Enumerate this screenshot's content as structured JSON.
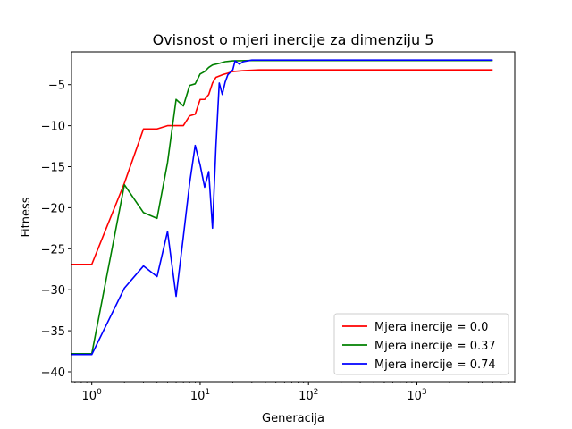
{
  "chart_data": {
    "type": "line",
    "title": "Ovisnost o mjeri inercije za dimenziju 5",
    "xlabel": "Generacija",
    "ylabel": "Fitness",
    "xscale": "log",
    "xlim": [
      0.65,
      8000
    ],
    "ylim": [
      -41.2,
      -1
    ],
    "x_ticks": [
      {
        "value": 1,
        "base": "10",
        "exp": "0"
      },
      {
        "value": 10,
        "base": "10",
        "exp": "1"
      },
      {
        "value": 100,
        "base": "10",
        "exp": "2"
      },
      {
        "value": 1000,
        "base": "10",
        "exp": "3"
      }
    ],
    "y_ticks": [
      {
        "value": -5,
        "label": "−5"
      },
      {
        "value": -10,
        "label": "−10"
      },
      {
        "value": -15,
        "label": "−15"
      },
      {
        "value": -20,
        "label": "−20"
      },
      {
        "value": -25,
        "label": "−25"
      },
      {
        "value": -30,
        "label": "−30"
      },
      {
        "value": -35,
        "label": "−35"
      },
      {
        "value": -40,
        "label": "−40"
      }
    ],
    "legend": {
      "position": "lower right"
    },
    "series": [
      {
        "name": "Mjera inercije = 0.0",
        "color": "#ff0000",
        "points": [
          [
            0.6,
            -26.9
          ],
          [
            1,
            -26.9
          ],
          [
            2,
            -17
          ],
          [
            3,
            -10.4
          ],
          [
            4,
            -10.4
          ],
          [
            5,
            -10
          ],
          [
            6,
            -10
          ],
          [
            7,
            -10
          ],
          [
            8,
            -8.8
          ],
          [
            9,
            -8.6
          ],
          [
            10,
            -6.8
          ],
          [
            11,
            -6.8
          ],
          [
            12,
            -6.2
          ],
          [
            13,
            -4.8
          ],
          [
            14,
            -4.1
          ],
          [
            16,
            -3.8
          ],
          [
            18,
            -3.6
          ],
          [
            20,
            -3.4
          ],
          [
            25,
            -3.3
          ],
          [
            35,
            -3.2
          ],
          [
            100,
            -3.2
          ],
          [
            1000,
            -3.2
          ],
          [
            5000,
            -3.2
          ]
        ]
      },
      {
        "name": "Mjera inercije = 0.37",
        "color": "#008000",
        "points": [
          [
            0.6,
            -37.8
          ],
          [
            1,
            -37.8
          ],
          [
            2,
            -17.2
          ],
          [
            3,
            -20.6
          ],
          [
            4,
            -21.3
          ],
          [
            5,
            -14.5
          ],
          [
            6,
            -6.8
          ],
          [
            7,
            -7.6
          ],
          [
            8,
            -5.1
          ],
          [
            9,
            -4.9
          ],
          [
            10,
            -3.7
          ],
          [
            11,
            -3.4
          ],
          [
            12,
            -2.9
          ],
          [
            13,
            -2.6
          ],
          [
            15,
            -2.4
          ],
          [
            17,
            -2.2
          ],
          [
            20,
            -2.1
          ],
          [
            30,
            -2.05
          ],
          [
            100,
            -2.05
          ],
          [
            1000,
            -2.05
          ],
          [
            5000,
            -2.05
          ]
        ]
      },
      {
        "name": "Mjera inercije = 0.74",
        "color": "#0000ff",
        "points": [
          [
            0.6,
            -37.9
          ],
          [
            1,
            -37.9
          ],
          [
            2,
            -29.8
          ],
          [
            3,
            -27.1
          ],
          [
            4,
            -28.4
          ],
          [
            5,
            -22.9
          ],
          [
            6,
            -30.8
          ],
          [
            7,
            -23.5
          ],
          [
            8,
            -17
          ],
          [
            9,
            -12.4
          ],
          [
            10,
            -14.8
          ],
          [
            11,
            -17.5
          ],
          [
            12,
            -15.6
          ],
          [
            13,
            -22.5
          ],
          [
            14,
            -12.4
          ],
          [
            15,
            -4.8
          ],
          [
            16,
            -6.2
          ],
          [
            17,
            -4.7
          ],
          [
            18,
            -3.8
          ],
          [
            20,
            -3.2
          ],
          [
            21,
            -2.1
          ],
          [
            23,
            -2.5
          ],
          [
            25,
            -2.2
          ],
          [
            30,
            -2.0
          ],
          [
            50,
            -2.0
          ],
          [
            100,
            -2.0
          ],
          [
            1000,
            -2.0
          ],
          [
            5000,
            -2.0
          ]
        ]
      }
    ]
  }
}
